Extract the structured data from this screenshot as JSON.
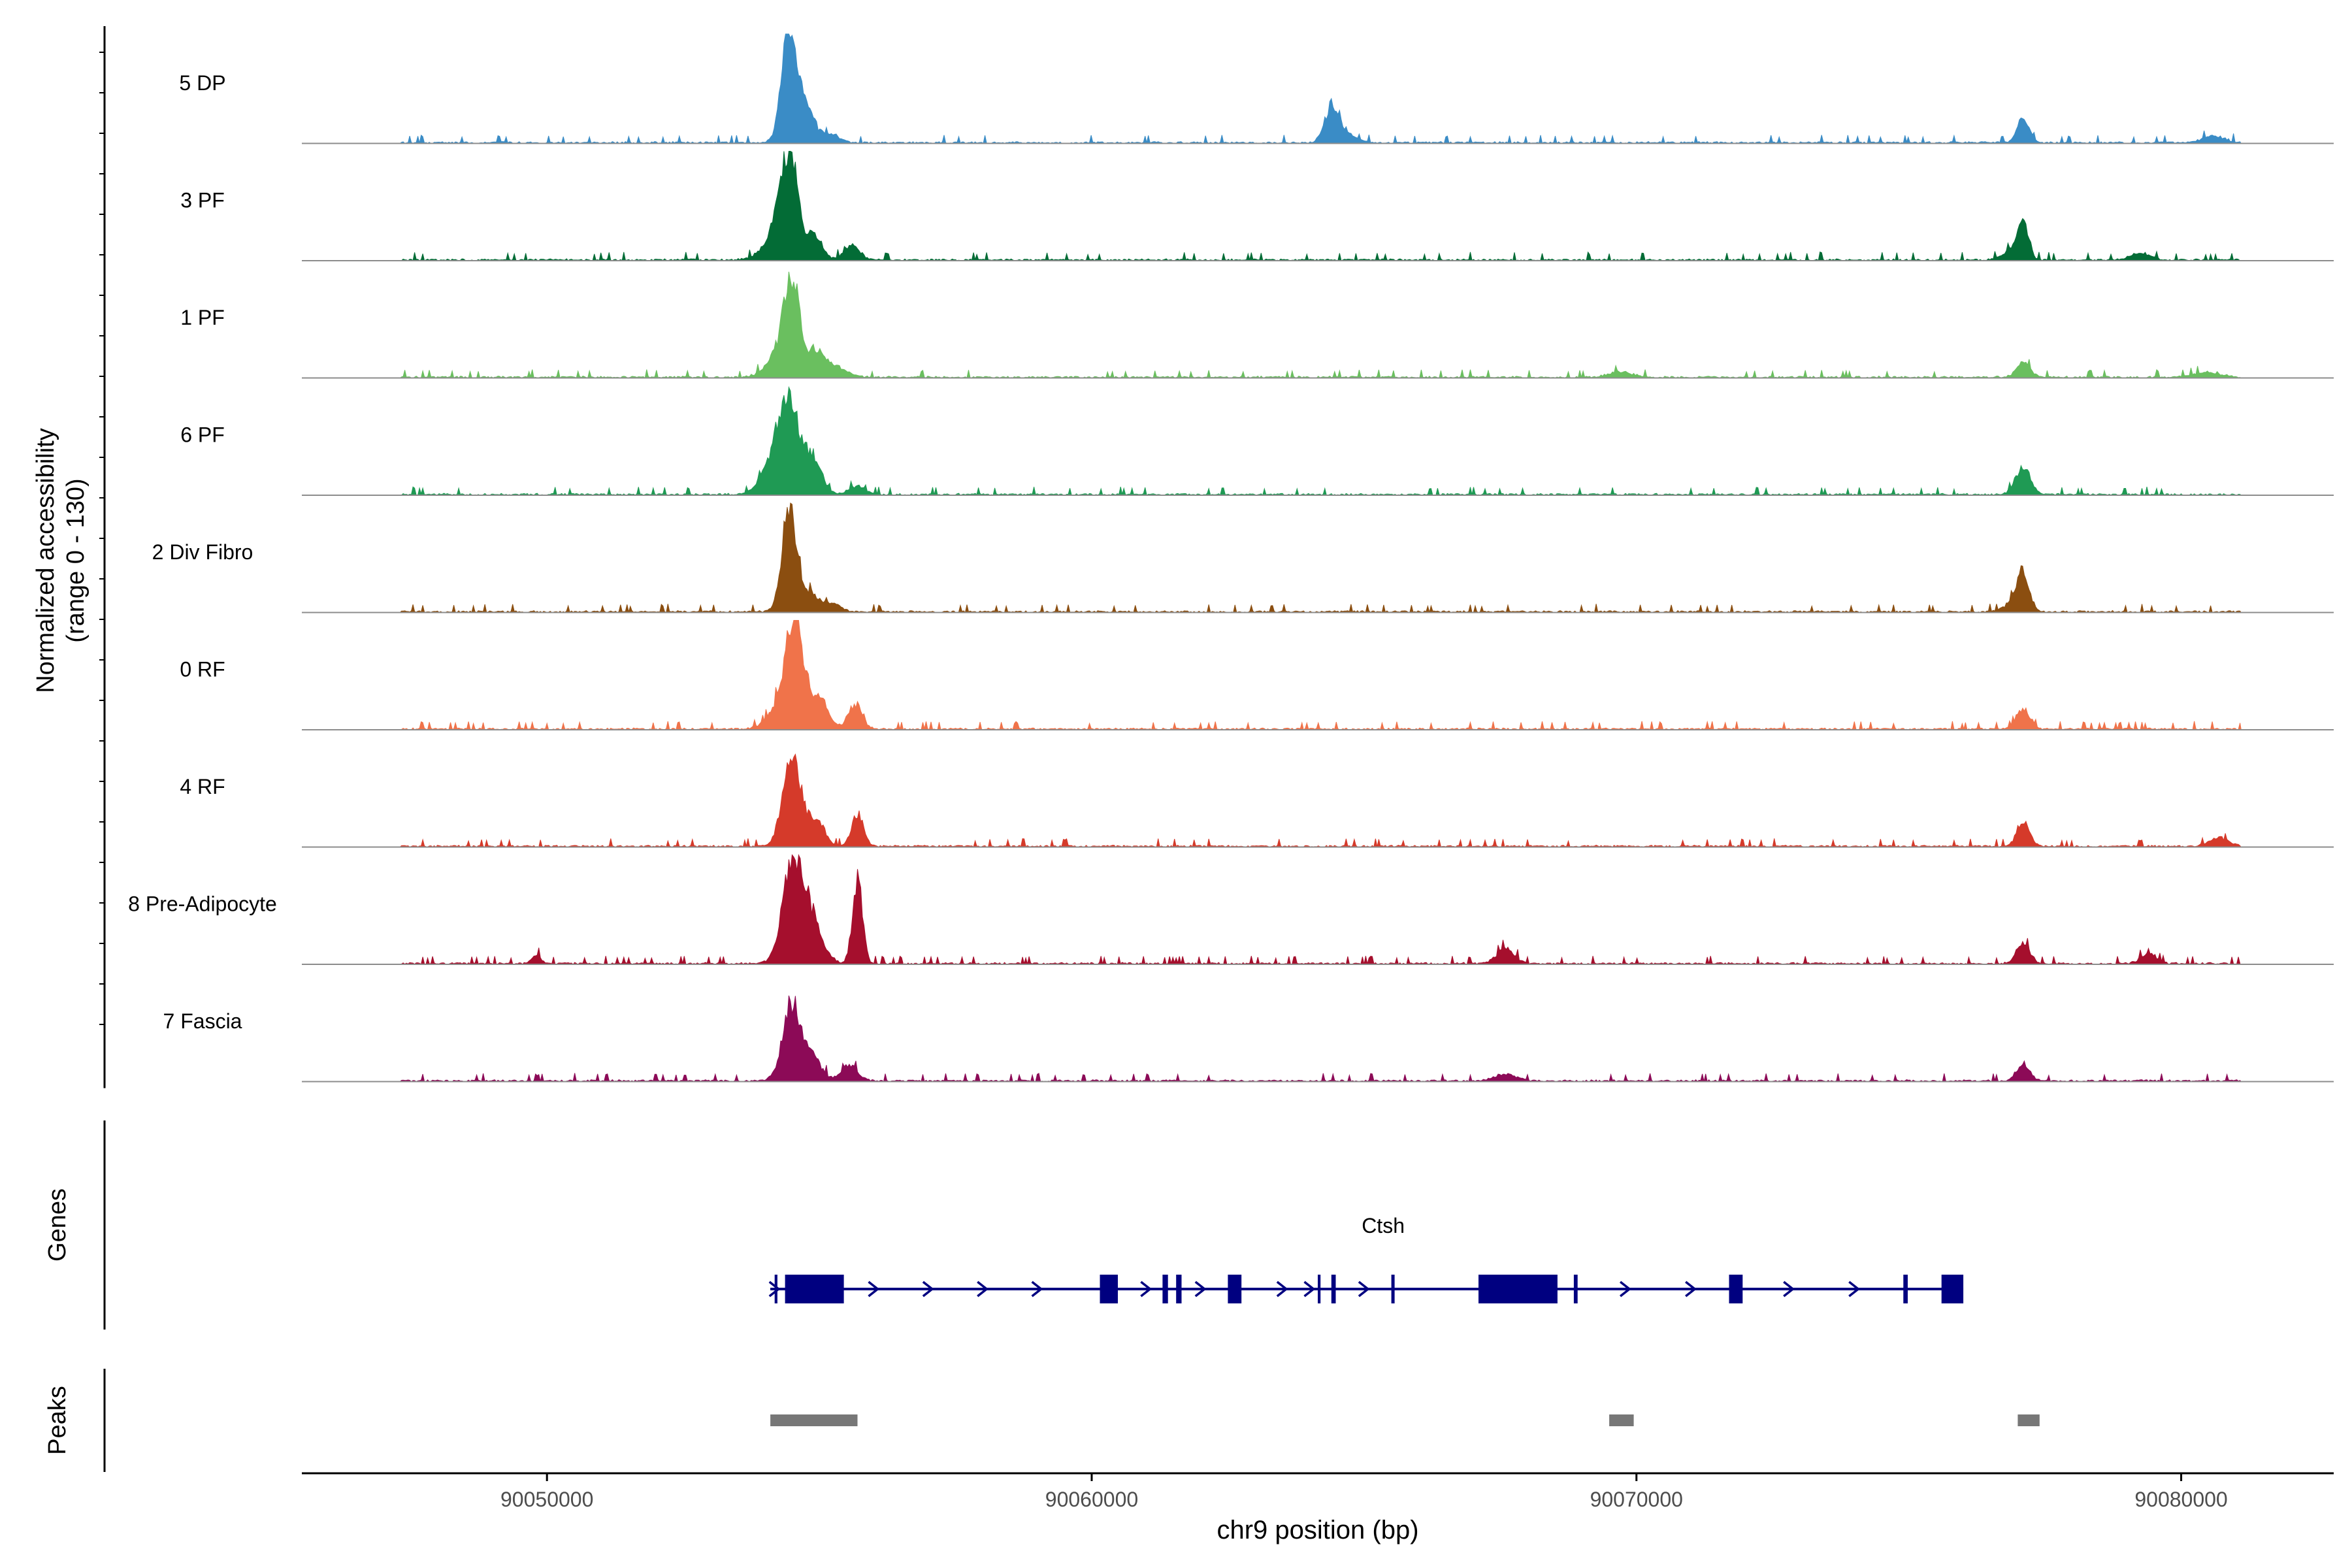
{
  "chart_data": {
    "type": "area",
    "title": "",
    "ylabel_line1": "Normalized accessibility",
    "ylabel_line2": "(range 0 - 130)",
    "xlabel": "chr9 position (bp)",
    "xlim": [
      90045500,
      90082800
    ],
    "ylim": [
      0,
      130
    ],
    "x_ticks": [
      {
        "value": 90050000,
        "label": "90050000"
      },
      {
        "value": 90060000,
        "label": "90060000"
      },
      {
        "value": 90070000,
        "label": "90070000"
      },
      {
        "value": 90080000,
        "label": "90080000"
      }
    ],
    "series": [
      {
        "name": "5 DP",
        "color": "#3a8cc6",
        "peaks": [
          [
            90054450,
            130,
            140
          ],
          [
            90054750,
            38,
            160
          ],
          [
            90055200,
            10,
            160
          ],
          [
            90064400,
            38,
            130
          ],
          [
            90064650,
            12,
            180
          ],
          [
            90077100,
            30,
            110
          ],
          [
            90080600,
            8,
            200
          ]
        ]
      },
      {
        "name": "3 PF",
        "color": "#036c36",
        "peaks": [
          [
            90054450,
            105,
            150
          ],
          [
            90054250,
            35,
            240
          ],
          [
            90054900,
            30,
            150
          ],
          [
            90055600,
            18,
            140
          ],
          [
            90077100,
            42,
            100
          ],
          [
            90076850,
            10,
            140
          ],
          [
            90079250,
            8,
            180
          ]
        ]
      },
      {
        "name": "1 PF",
        "color": "#6abf5f",
        "peaks": [
          [
            90054500,
            100,
            140
          ],
          [
            90054300,
            30,
            240
          ],
          [
            90054950,
            28,
            150
          ],
          [
            90055300,
            12,
            200
          ],
          [
            90077100,
            18,
            120
          ],
          [
            90069700,
            6,
            220
          ],
          [
            90080500,
            6,
            220
          ]
        ]
      },
      {
        "name": "6 PF",
        "color": "#1f9a54",
        "peaks": [
          [
            90054450,
            90,
            200
          ],
          [
            90054200,
            35,
            250
          ],
          [
            90054900,
            40,
            150
          ],
          [
            90055700,
            10,
            150
          ],
          [
            90077100,
            32,
            140
          ]
        ]
      },
      {
        "name": "2 Div Fibro",
        "color": "#8b4e10",
        "peaks": [
          [
            90054450,
            125,
            130
          ],
          [
            90054800,
            22,
            150
          ],
          [
            90055200,
            10,
            170
          ],
          [
            90077100,
            48,
            110
          ],
          [
            90076850,
            8,
            150
          ]
        ]
      },
      {
        "name": "0 RF",
        "color": "#f0734a",
        "peaks": [
          [
            90054550,
            125,
            150
          ],
          [
            90054300,
            30,
            220
          ],
          [
            90055000,
            40,
            150
          ],
          [
            90055650,
            28,
            130
          ],
          [
            90077100,
            25,
            120
          ]
        ]
      },
      {
        "name": "4 RF",
        "color": "#d53a2a",
        "peaks": [
          [
            90054500,
            102,
            170
          ],
          [
            90054950,
            30,
            150
          ],
          [
            90055700,
            38,
            110
          ],
          [
            90077100,
            32,
            110
          ],
          [
            90080700,
            10,
            180
          ]
        ]
      },
      {
        "name": "8 Pre-Adipocyte",
        "color": "#a50f2d",
        "peaks": [
          [
            90054500,
            118,
            180
          ],
          [
            90054850,
            52,
            200
          ],
          [
            90055700,
            100,
            90
          ],
          [
            90049800,
            10,
            80
          ],
          [
            90067600,
            18,
            160
          ],
          [
            90077100,
            25,
            120
          ],
          [
            90079400,
            12,
            140
          ]
        ]
      },
      {
        "name": "7 Fascia",
        "color": "#8c0a57",
        "peaks": [
          [
            90054500,
            90,
            170
          ],
          [
            90054900,
            25,
            150
          ],
          [
            90055550,
            18,
            150
          ],
          [
            90067600,
            8,
            200
          ],
          [
            90077100,
            20,
            120
          ]
        ]
      }
    ],
    "genes_label": "Genes",
    "gene": {
      "name": "Ctsh",
      "start": 90054100,
      "end": 90076000,
      "color": "#000080",
      "exons": [
        [
          90054180,
          90054230
        ],
        [
          90054370,
          90055450
        ],
        [
          90060150,
          90060480
        ],
        [
          90061300,
          90061400
        ],
        [
          90061550,
          90061650
        ],
        [
          90062500,
          90062750
        ],
        [
          90064150,
          90064200
        ],
        [
          90064400,
          90064480
        ],
        [
          90065500,
          90065560
        ],
        [
          90067100,
          90068550
        ],
        [
          90068850,
          90068920
        ],
        [
          90071700,
          90071950
        ],
        [
          90074900,
          90074980
        ],
        [
          90075600,
          90076000
        ]
      ],
      "arrows": [
        90054180,
        90056000,
        90057000,
        90058000,
        90059000,
        90061000,
        90062000,
        90063500,
        90064000,
        90065000,
        90069800,
        90071000,
        90072800,
        90074000
      ]
    },
    "peaks_label": "Peaks",
    "peak_color": "#777777",
    "peak_regions": [
      [
        90054100,
        90055700
      ],
      [
        90069500,
        90069950
      ],
      [
        90077000,
        90077400
      ]
    ]
  }
}
